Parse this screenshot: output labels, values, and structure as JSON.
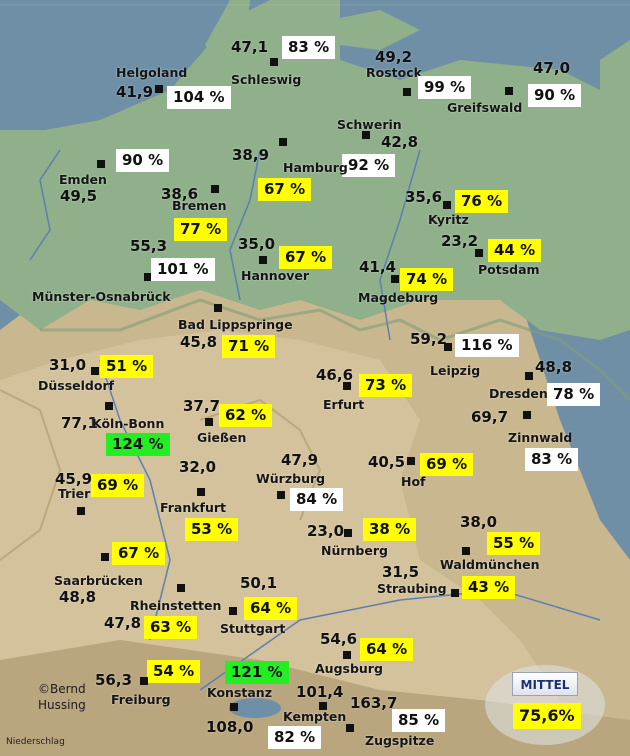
{
  "credit": {
    "line1": "©Bernd",
    "line2": "Hussing",
    "caption": "Niederschlag"
  },
  "mean": {
    "label": "MITTEL",
    "value": "75,6%"
  },
  "colors": {
    "white_badge": "#ffffff",
    "yellow_badge": "#ffff00",
    "green_badge": "#22ee22",
    "water": "#6f8fa6",
    "lowland": "#8fb08a"
  },
  "stations": [
    {
      "id": "schleswig",
      "name": "Schleswig",
      "value": "47,1",
      "percent": "83 %",
      "color": "white"
    },
    {
      "id": "helgoland",
      "name": "Helgoland",
      "value": "41,9",
      "percent": "104 %",
      "color": "white"
    },
    {
      "id": "rostock",
      "name": "Rostock",
      "value": "49,2",
      "percent": "99 %",
      "color": "white"
    },
    {
      "id": "greifswald",
      "name": "Greifswald",
      "value": "47,0",
      "percent": "90 %",
      "color": "white"
    },
    {
      "id": "schwerin",
      "name": "Schwerin",
      "value": "42,8",
      "percent": "92 %",
      "color": "white"
    },
    {
      "id": "emden",
      "name": "Emden",
      "value": "49,5",
      "percent": "90 %",
      "color": "white"
    },
    {
      "id": "hamburg",
      "name": "Hamburg",
      "value": "38,9",
      "percent": "67 %",
      "color": "yellow"
    },
    {
      "id": "bremen",
      "name": "Bremen",
      "value": "38,6",
      "percent": "77 %",
      "color": "yellow"
    },
    {
      "id": "kyritz",
      "name": "Kyritz",
      "value": "35,6",
      "percent": "76 %",
      "color": "yellow"
    },
    {
      "id": "potsdam",
      "name": "Potsdam",
      "value": "23,2",
      "percent": "44 %",
      "color": "yellow"
    },
    {
      "id": "muenster",
      "name": "Münster-Osnabrück",
      "value": "55,3",
      "percent": "101 %",
      "color": "white"
    },
    {
      "id": "hannover",
      "name": "Hannover",
      "value": "35,0",
      "percent": "67 %",
      "color": "yellow"
    },
    {
      "id": "magdeburg",
      "name": "Magdeburg",
      "value": "41,4",
      "percent": "74 %",
      "color": "yellow"
    },
    {
      "id": "lippspringe",
      "name": "Bad Lippspringe",
      "value": "45,8",
      "percent": "71 %",
      "color": "yellow"
    },
    {
      "id": "leipzig",
      "name": "Leipzig",
      "value": "59,2",
      "percent": "116 %",
      "color": "white"
    },
    {
      "id": "duesseldorf",
      "name": "Düsseldorf",
      "value": "31,0",
      "percent": "51 %",
      "color": "yellow"
    },
    {
      "id": "dresden",
      "name": "Dresden",
      "value": "48,8",
      "percent": "78 %",
      "color": "white"
    },
    {
      "id": "erfurt",
      "name": "Erfurt",
      "value": "46,6",
      "percent": "73 %",
      "color": "yellow"
    },
    {
      "id": "koeln",
      "name": "Köln-Bonn",
      "value": "77,1",
      "percent": "124 %",
      "color": "green"
    },
    {
      "id": "giessen",
      "name": "Gießen",
      "value": "37,7",
      "percent": "62 %",
      "color": "yellow"
    },
    {
      "id": "zinnwald",
      "name": "Zinnwald",
      "value": "69,7",
      "percent": "83 %",
      "color": "white"
    },
    {
      "id": "hof",
      "name": "Hof",
      "value": "40,5",
      "percent": "69 %",
      "color": "yellow"
    },
    {
      "id": "trier",
      "name": "Trier",
      "value": "45,9",
      "percent": "69 %",
      "color": "yellow"
    },
    {
      "id": "frankfurt",
      "name": "Frankfurt",
      "value": "32,0",
      "percent": "53 %",
      "color": "yellow"
    },
    {
      "id": "wuerzburg",
      "name": "Würzburg",
      "value": "47,9",
      "percent": "84 %",
      "color": "white"
    },
    {
      "id": "nuernberg",
      "name": "Nürnberg",
      "value": "23,0",
      "percent": "38 %",
      "color": "yellow"
    },
    {
      "id": "waldmuenchen",
      "name": "Waldmünchen",
      "value": "38,0",
      "percent": "55 %",
      "color": "yellow"
    },
    {
      "id": "saarbruecken",
      "name": "Saarbrücken",
      "value": "48,8",
      "percent": "67 %",
      "color": "yellow"
    },
    {
      "id": "straubing",
      "name": "Straubing",
      "value": "31,5",
      "percent": "43 %",
      "color": "yellow"
    },
    {
      "id": "rheinstetten",
      "name": "Rheinstetten",
      "value": "47,8",
      "percent": "63 %",
      "color": "yellow"
    },
    {
      "id": "stuttgart",
      "name": "Stuttgart",
      "value": "50,1",
      "percent": "64 %",
      "color": "yellow"
    },
    {
      "id": "augsburg",
      "name": "Augsburg",
      "value": "54,6",
      "percent": "64 %",
      "color": "yellow"
    },
    {
      "id": "freiburg",
      "name": "Freiburg",
      "value": "56,3",
      "percent": "54 %",
      "color": "yellow"
    },
    {
      "id": "konstanz",
      "name": "Konstanz",
      "value": "108,0",
      "percent": "121 %",
      "color": "green"
    },
    {
      "id": "kempten",
      "name": "Kempten",
      "value": "101,4",
      "percent": "82 %",
      "color": "white"
    },
    {
      "id": "zugspitze",
      "name": "Zugspitze",
      "value": "163,7",
      "percent": "85 %",
      "color": "white"
    }
  ]
}
